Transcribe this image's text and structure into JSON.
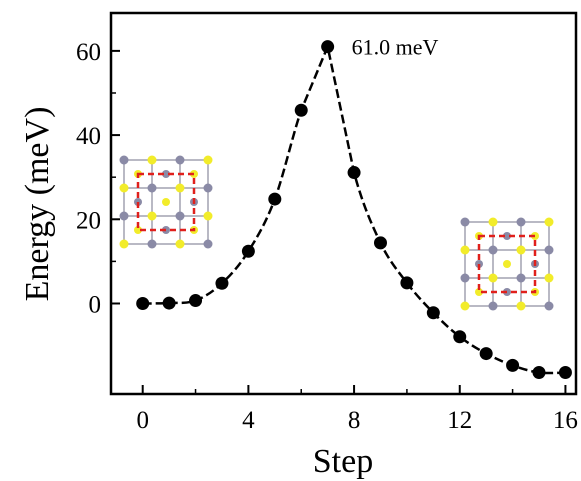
{
  "chart_data": {
    "type": "line",
    "xlabel": "Step",
    "ylabel": "Energy (meV)",
    "xlim": [
      -1.2,
      16.4
    ],
    "ylim": [
      -21.5,
      69.0
    ],
    "xticks": [
      0,
      4,
      8,
      12,
      16
    ],
    "xtick_labels": [
      "0",
      "4",
      "8",
      "12",
      "16"
    ],
    "yticks": [
      0,
      20,
      40,
      60
    ],
    "ytick_labels": [
      "0",
      "20",
      "40",
      "60"
    ],
    "series": [
      {
        "x": [
          0,
          1,
          2,
          3,
          4,
          5,
          6,
          7,
          8,
          9,
          10,
          11,
          12,
          13,
          14,
          15,
          16
        ],
        "y": [
          0.0,
          0.1,
          0.7,
          4.8,
          12.4,
          24.8,
          45.9,
          61.0,
          31.1,
          14.4,
          4.9,
          -2.2,
          -7.9,
          -11.9,
          -14.7,
          -16.4,
          -16.4
        ],
        "color": "#000000",
        "marker": "circle",
        "line_style": "dashed"
      }
    ],
    "annotations": [
      {
        "text": "61.0 meV",
        "x": 7,
        "y": 61.0
      }
    ],
    "grid": false,
    "insets": [
      "crystal-structure-left",
      "crystal-structure-right"
    ]
  }
}
